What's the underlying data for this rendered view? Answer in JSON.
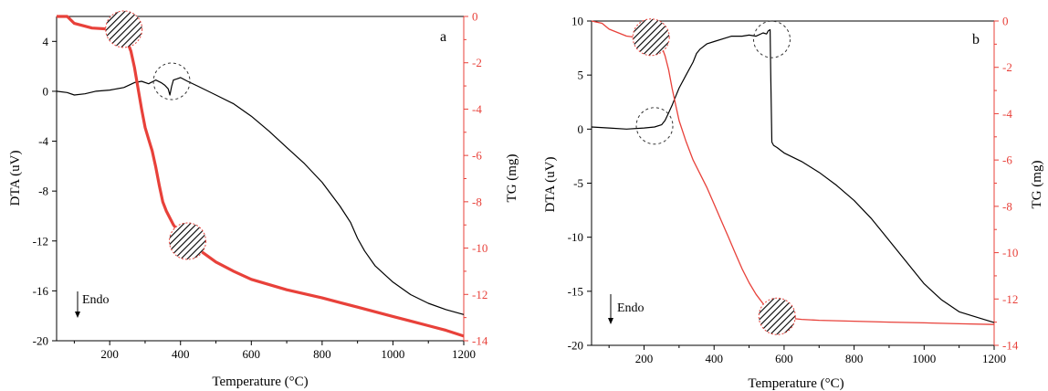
{
  "colors": {
    "dta": "#000000",
    "tg": "#e8413a",
    "axis_right": "#e8413a",
    "ann": "#333333"
  },
  "chart_data": [
    {
      "type": "line",
      "panel_label": "a",
      "xlabel": "Temperature (°C)",
      "ylabel_left": "DTA (uV)",
      "ylabel_right": "TG (mg)",
      "xlim": [
        50,
        1200
      ],
      "ylim_left": [
        -20,
        6
      ],
      "ylim_right": [
        -14,
        0
      ],
      "x_ticks": [
        "200",
        "400",
        "600",
        "800",
        "1000",
        "1200"
      ],
      "y_left_ticks": [
        "4",
        "0",
        "-4",
        "-8",
        "-12",
        "-16",
        "-20"
      ],
      "y_right_ticks": [
        "0",
        "-2",
        "-4",
        "-6",
        "-8",
        "-10",
        "-12",
        "-14"
      ],
      "annotation": "Endo",
      "grid": false,
      "series": [
        {
          "axis": "left",
          "x": [
            50,
            80,
            100,
            130,
            160,
            200,
            240,
            270,
            290,
            310,
            330,
            345,
            355,
            365,
            370,
            375,
            380,
            390,
            400,
            420,
            450,
            500,
            550,
            600,
            650,
            700,
            750,
            800,
            850,
            880,
            900,
            920,
            950,
            1000,
            1050,
            1100,
            1150,
            1200
          ],
          "y": [
            0,
            -0.1,
            -0.3,
            -0.2,
            0,
            0.1,
            0.3,
            0.7,
            0.8,
            0.6,
            0.9,
            0.7,
            0.5,
            0.2,
            -0.3,
            0.4,
            0.9,
            1.0,
            1.1,
            0.8,
            0.4,
            -0.3,
            -1.0,
            -2.0,
            -3.2,
            -4.5,
            -5.8,
            -7.3,
            -9.2,
            -10.5,
            -11.8,
            -12.8,
            -14.0,
            -15.3,
            -16.3,
            -17.0,
            -17.5,
            -17.9
          ]
        },
        {
          "axis": "right",
          "x": [
            50,
            80,
            100,
            150,
            200,
            220,
            240,
            250,
            260,
            270,
            280,
            290,
            300,
            310,
            320,
            330,
            340,
            350,
            360,
            370,
            380,
            400,
            420,
            450,
            500,
            550,
            600,
            700,
            800,
            850,
            900,
            950,
            1000,
            1050,
            1100,
            1150,
            1200
          ],
          "y": [
            0,
            0,
            -0.3,
            -0.5,
            -0.55,
            -0.6,
            -0.8,
            -1.1,
            -1.5,
            -2.2,
            -3.1,
            -4.0,
            -4.8,
            -5.3,
            -5.8,
            -6.5,
            -7.3,
            -8.0,
            -8.4,
            -8.7,
            -9.0,
            -9.4,
            -9.7,
            -10.05,
            -10.6,
            -11.0,
            -11.35,
            -11.8,
            -12.15,
            -12.35,
            -12.55,
            -12.75,
            -12.95,
            -13.15,
            -13.35,
            -13.55,
            -13.8
          ]
        }
      ],
      "markers": [
        {
          "kind": "hatched",
          "axis": "right",
          "x": 240,
          "y": -0.55
        },
        {
          "kind": "hatched",
          "axis": "right",
          "x": 420,
          "y": -9.7
        },
        {
          "kind": "dashed",
          "axis": "left",
          "x": 375,
          "y": 0.8
        }
      ]
    },
    {
      "type": "line",
      "panel_label": "b",
      "xlabel": "Temperature (°C)",
      "ylabel_left": "DTA (uV)",
      "ylabel_right": "TG (mg)",
      "xlim": [
        50,
        1200
      ],
      "ylim_left": [
        -20,
        10
      ],
      "ylim_right": [
        -14,
        0
      ],
      "x_ticks": [
        "200",
        "400",
        "600",
        "800",
        "1000",
        "1200"
      ],
      "y_left_ticks": [
        "10",
        "5",
        "0",
        "-5",
        "-10",
        "-15",
        "-20"
      ],
      "y_right_ticks": [
        "0",
        "-2",
        "-4",
        "-6",
        "-8",
        "-10",
        "-12",
        "-14"
      ],
      "annotation": "Endo",
      "grid": false,
      "series": [
        {
          "axis": "left",
          "x": [
            50,
            100,
            150,
            200,
            230,
            250,
            260,
            270,
            280,
            290,
            300,
            320,
            340,
            350,
            360,
            380,
            400,
            430,
            450,
            480,
            500,
            520,
            540,
            550,
            555,
            560,
            562,
            565,
            570,
            580,
            600,
            650,
            700,
            750,
            800,
            850,
            900,
            950,
            1000,
            1050,
            1100,
            1150,
            1200
          ],
          "y": [
            0.2,
            0.1,
            0.0,
            0.1,
            0.2,
            0.4,
            0.8,
            1.5,
            2.2,
            3.0,
            3.8,
            5.0,
            6.2,
            7.0,
            7.4,
            7.9,
            8.1,
            8.4,
            8.6,
            8.6,
            8.7,
            8.6,
            8.9,
            8.8,
            9.1,
            9.2,
            5.0,
            -1.2,
            -1.5,
            -1.7,
            -2.2,
            -3.0,
            -4.0,
            -5.2,
            -6.6,
            -8.3,
            -10.3,
            -12.3,
            -14.3,
            -15.8,
            -16.9,
            -17.4,
            -17.9
          ]
        },
        {
          "axis": "right",
          "x": [
            50,
            80,
            100,
            150,
            200,
            230,
            250,
            260,
            270,
            280,
            290,
            300,
            320,
            340,
            360,
            380,
            400,
            420,
            440,
            460,
            480,
            500,
            520,
            540,
            560,
            570,
            580,
            600,
            650,
            700,
            800,
            900,
            1000,
            1100,
            1200
          ],
          "y": [
            0,
            -0.1,
            -0.35,
            -0.65,
            -0.75,
            -0.85,
            -1.1,
            -1.5,
            -2.1,
            -2.9,
            -3.6,
            -4.3,
            -5.2,
            -6.0,
            -6.6,
            -7.2,
            -7.9,
            -8.6,
            -9.3,
            -10.0,
            -10.7,
            -11.3,
            -11.8,
            -12.2,
            -12.5,
            -12.65,
            -12.75,
            -12.8,
            -12.88,
            -12.92,
            -12.96,
            -13.0,
            -13.03,
            -13.07,
            -13.1
          ]
        }
      ],
      "markers": [
        {
          "kind": "hatched",
          "axis": "right",
          "x": 220,
          "y": -0.7
        },
        {
          "kind": "hatched",
          "axis": "right",
          "x": 580,
          "y": -12.75
        },
        {
          "kind": "dashed",
          "axis": "left",
          "x": 230,
          "y": 0.3
        },
        {
          "kind": "dashed",
          "axis": "left",
          "x": 565,
          "y": 8.3
        }
      ]
    }
  ]
}
